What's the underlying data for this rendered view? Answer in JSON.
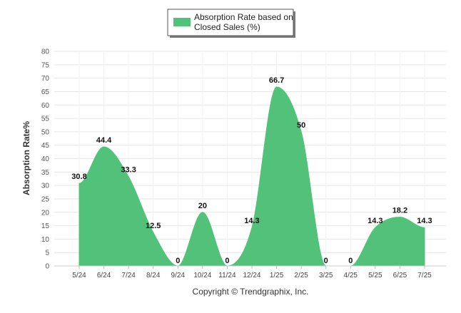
{
  "chart_data": {
    "type": "area",
    "categories": [
      "5/24",
      "6/24",
      "7/24",
      "8/24",
      "9/24",
      "10/24",
      "11/24",
      "12/24",
      "1/25",
      "2/25",
      "3/25",
      "4/25",
      "5/25",
      "6/25",
      "7/25"
    ],
    "series": [
      {
        "name": "Absorption Rate based on Closed Sales (%)",
        "values": [
          30.8,
          44.4,
          33.3,
          12.5,
          0,
          20,
          0,
          14.3,
          66.7,
          50,
          0,
          0,
          14.3,
          18.2,
          14.3
        ],
        "labels": [
          "30.8",
          "44.4",
          "33.3",
          "12.5",
          "0",
          "20",
          "0",
          "14.3",
          "66.7",
          "50",
          "0",
          "0",
          "14.3",
          "18.2",
          "14.3"
        ],
        "color": "#52c27a"
      }
    ],
    "ylabel": "Absorption Rate%",
    "xlabel": "",
    "ylim": [
      0,
      80
    ],
    "yticks": [
      0,
      5,
      10,
      15,
      20,
      25,
      30,
      35,
      40,
      45,
      50,
      55,
      60,
      65,
      70,
      75,
      80
    ],
    "grid": true,
    "legend_position": "top-center"
  },
  "legend": {
    "line1": "Absorption Rate based on",
    "line2": "Closed Sales (%)"
  },
  "footer": {
    "copyright": "Copyright © Trendgraphix, Inc."
  },
  "colors": {
    "series_fill": "#52c27a",
    "grid": "#e6e6e6"
  }
}
